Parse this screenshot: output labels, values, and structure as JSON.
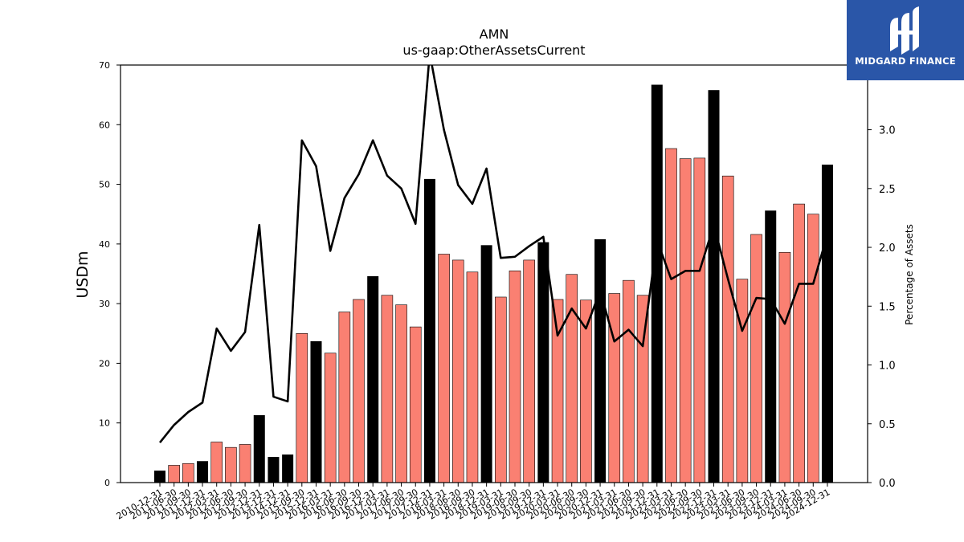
{
  "chart_data": {
    "type": "bar",
    "title": "AMN",
    "subtitle": "us-gaap:OtherAssetsCurrent",
    "ylabel": "USDm",
    "y2label": "Percentage of Assets",
    "ylim": [
      0,
      70
    ],
    "y2lim": [
      0,
      3.55
    ],
    "yticks": [
      0,
      10,
      20,
      30,
      40,
      50,
      60,
      70
    ],
    "y2ticks": [
      "0.0",
      "0.5",
      "1.0",
      "1.5",
      "2.0",
      "2.5",
      "3.0"
    ],
    "colors": {
      "annual": "#000000",
      "quarterly": "#fa8072",
      "line": "#000000"
    },
    "categories": [
      "2010-12-31",
      "2011-06-30",
      "2011-09-30",
      "2011-12-31",
      "2012-03-31",
      "2012-06-30",
      "2012-09-30",
      "2012-12-31",
      "2013-12-31",
      "2014-12-31",
      "2015-09-30",
      "2015-12-31",
      "2016-03-31",
      "2016-06-30",
      "2016-09-30",
      "2016-12-31",
      "2017-03-31",
      "2017-06-30",
      "2017-09-30",
      "2017-12-31",
      "2018-03-31",
      "2018-06-30",
      "2018-09-30",
      "2018-12-31",
      "2019-03-31",
      "2019-06-30",
      "2019-09-30",
      "2019-12-31",
      "2020-03-31",
      "2020-06-30",
      "2020-09-30",
      "2020-12-31",
      "2021-03-31",
      "2021-06-30",
      "2021-09-30",
      "2021-12-31",
      "2022-03-31",
      "2022-06-30",
      "2022-09-30",
      "2022-12-31",
      "2023-03-31",
      "2023-06-30",
      "2023-09-30",
      "2023-12-31",
      "2024-03-31",
      "2024-06-30",
      "2024-09-30",
      "2024-12-31"
    ],
    "series": [
      {
        "kind": "bar",
        "values": [
          2.0,
          2.9,
          3.2,
          3.6,
          6.8,
          5.9,
          6.4,
          11.3,
          4.3,
          4.7,
          25.0,
          23.7,
          21.7,
          28.6,
          30.7,
          34.6,
          31.4,
          29.8,
          26.1,
          50.9,
          38.3,
          37.3,
          35.3,
          39.8,
          31.1,
          35.5,
          37.3,
          40.3,
          30.7,
          34.9,
          30.6,
          40.8,
          31.7,
          33.9,
          31.4,
          66.7,
          56.0,
          54.3,
          54.4,
          65.8,
          51.4,
          34.1,
          41.6,
          45.6,
          38.6,
          46.7,
          45.0,
          53.3
        ],
        "annual": [
          true,
          false,
          false,
          true,
          false,
          false,
          false,
          true,
          true,
          true,
          false,
          true,
          false,
          false,
          false,
          true,
          false,
          false,
          false,
          true,
          false,
          false,
          false,
          true,
          false,
          false,
          false,
          true,
          false,
          false,
          false,
          true,
          false,
          false,
          false,
          true,
          false,
          false,
          false,
          true,
          false,
          false,
          false,
          true,
          false,
          false,
          false,
          true
        ]
      },
      {
        "kind": "line",
        "axis": "right",
        "values": [
          0.34,
          0.49,
          0.6,
          0.68,
          1.31,
          1.12,
          1.28,
          2.19,
          0.73,
          0.69,
          2.91,
          2.69,
          1.97,
          2.42,
          2.62,
          2.91,
          2.61,
          2.5,
          2.2,
          3.65,
          3.0,
          2.53,
          2.37,
          2.67,
          1.91,
          1.92,
          2.01,
          2.09,
          1.25,
          1.48,
          1.31,
          1.63,
          1.2,
          1.3,
          1.16,
          2.06,
          1.73,
          1.8,
          1.8,
          2.19,
          1.73,
          1.29,
          1.57,
          1.56,
          1.35,
          1.69,
          1.69,
          2.11
        ]
      }
    ]
  },
  "logo": {
    "text": "MIDGARD FINANCE",
    "icon": "midgard-logo-icon"
  }
}
